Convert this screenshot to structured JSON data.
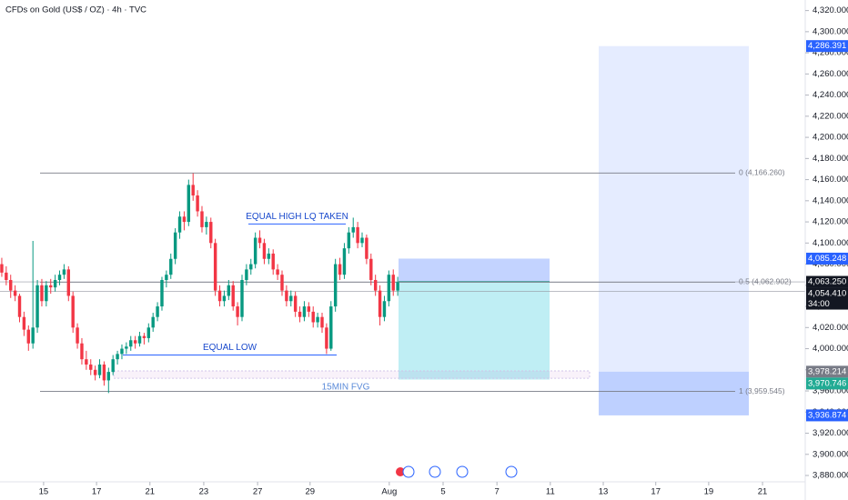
{
  "chart_data": {
    "type": "candlestick",
    "title": "CFDs on Gold (US$ / OZ) · 4h · TVC",
    "up_color": "#089981",
    "down_color": "#f23645",
    "ohlc": [
      [
        4080,
        4086,
        4068,
        4072
      ],
      [
        4072,
        4078,
        4060,
        4065
      ],
      [
        4065,
        4070,
        4048,
        4055
      ],
      [
        4055,
        4060,
        4045,
        4050
      ],
      [
        4050,
        4052,
        4025,
        4030
      ],
      [
        4030,
        4035,
        4012,
        4018
      ],
      [
        4018,
        4022,
        3998,
        4005
      ],
      [
        4005,
        4102,
        4000,
        4020
      ],
      [
        4020,
        4065,
        4015,
        4060
      ],
      [
        4060,
        4066,
        4040,
        4045
      ],
      [
        4045,
        4064,
        4040,
        4060
      ],
      [
        4060,
        4066,
        4052,
        4058
      ],
      [
        4058,
        4070,
        4054,
        4065
      ],
      [
        4065,
        4074,
        4060,
        4070
      ],
      [
        4070,
        4080,
        4066,
        4075
      ],
      [
        4075,
        4078,
        4045,
        4050
      ],
      [
        4050,
        4054,
        4015,
        4020
      ],
      [
        4020,
        4024,
        4000,
        4005
      ],
      [
        4005,
        4010,
        3985,
        3990
      ],
      [
        3990,
        3998,
        3980,
        3985
      ],
      [
        3985,
        3990,
        3975,
        3980
      ],
      [
        3980,
        3984,
        3970,
        3975
      ],
      [
        3975,
        3990,
        3972,
        3985
      ],
      [
        3985,
        3988,
        3965,
        3970
      ],
      [
        3970,
        3982,
        3958,
        3978
      ],
      [
        3978,
        3994,
        3975,
        3990
      ],
      [
        3990,
        3998,
        3985,
        3995
      ],
      [
        3995,
        4004,
        3990,
        4000
      ],
      [
        4000,
        4006,
        3995,
        4002
      ],
      [
        4002,
        4012,
        3998,
        4008
      ],
      [
        4008,
        4012,
        4000,
        4005
      ],
      [
        4005,
        4016,
        4002,
        4012
      ],
      [
        4012,
        4015,
        4004,
        4010
      ],
      [
        4010,
        4024,
        4006,
        4020
      ],
      [
        4020,
        4034,
        4016,
        4030
      ],
      [
        4030,
        4044,
        4026,
        4040
      ],
      [
        4040,
        4068,
        4036,
        4065
      ],
      [
        4065,
        4074,
        4058,
        4070
      ],
      [
        4070,
        4090,
        4066,
        4085
      ],
      [
        4085,
        4114,
        4080,
        4110
      ],
      [
        4110,
        4130,
        4104,
        4125
      ],
      [
        4125,
        4130,
        4112,
        4120
      ],
      [
        4120,
        4160,
        4116,
        4155
      ],
      [
        4155,
        4166,
        4140,
        4145
      ],
      [
        4145,
        4150,
        4125,
        4130
      ],
      [
        4130,
        4135,
        4110,
        4115
      ],
      [
        4115,
        4125,
        4108,
        4120
      ],
      [
        4120,
        4124,
        4095,
        4100
      ],
      [
        4100,
        4104,
        4050,
        4055
      ],
      [
        4055,
        4060,
        4040,
        4045
      ],
      [
        4045,
        4055,
        4040,
        4050
      ],
      [
        4050,
        4065,
        4046,
        4060
      ],
      [
        4060,
        4064,
        4036,
        4040
      ],
      [
        4040,
        4044,
        4022,
        4030
      ],
      [
        4030,
        4070,
        4026,
        4065
      ],
      [
        4065,
        4080,
        4060,
        4075
      ],
      [
        4075,
        4085,
        4070,
        4080
      ],
      [
        4080,
        4110,
        4076,
        4105
      ],
      [
        4105,
        4112,
        4095,
        4100
      ],
      [
        4100,
        4104,
        4080,
        4085
      ],
      [
        4085,
        4095,
        4080,
        4090
      ],
      [
        4090,
        4094,
        4070,
        4075
      ],
      [
        4075,
        4080,
        4065,
        4070
      ],
      [
        4070,
        4074,
        4050,
        4055
      ],
      [
        4055,
        4060,
        4040,
        4045
      ],
      [
        4045,
        4055,
        4040,
        4050
      ],
      [
        4050,
        4054,
        4030,
        4035
      ],
      [
        4035,
        4040,
        4025,
        4030
      ],
      [
        4030,
        4045,
        4026,
        4040
      ],
      [
        4040,
        4044,
        4030,
        4035
      ],
      [
        4035,
        4040,
        4020,
        4025
      ],
      [
        4025,
        4034,
        4020,
        4030
      ],
      [
        4030,
        4034,
        4015,
        4020
      ],
      [
        4020,
        4024,
        3995,
        4000
      ],
      [
        4000,
        4045,
        3998,
        4040
      ],
      [
        4040,
        4085,
        4035,
        4080
      ],
      [
        4080,
        4086,
        4065,
        4070
      ],
      [
        4070,
        4100,
        4066,
        4095
      ],
      [
        4095,
        4115,
        4090,
        4110
      ],
      [
        4110,
        4124,
        4105,
        4115
      ],
      [
        4115,
        4120,
        4095,
        4100
      ],
      [
        4100,
        4110,
        4096,
        4105
      ],
      [
        4105,
        4108,
        4080,
        4085
      ],
      [
        4085,
        4090,
        4060,
        4065
      ],
      [
        4065,
        4070,
        4050,
        4055
      ],
      [
        4055,
        4060,
        4022,
        4030
      ],
      [
        4030,
        4050,
        4026,
        4045
      ],
      [
        4045,
        4074,
        4040,
        4070
      ],
      [
        4070,
        4075,
        4050,
        4055
      ],
      [
        4055,
        4068,
        4050,
        4063
      ]
    ],
    "xlim": [
      -0.4,
      180.6
    ],
    "xticks": [
      {
        "value": 9.4,
        "label": "15"
      },
      {
        "value": 21.3,
        "label": "17"
      },
      {
        "value": 33.3,
        "label": "21"
      },
      {
        "value": 45.4,
        "label": "23"
      },
      {
        "value": 57.5,
        "label": "27"
      },
      {
        "value": 69.3,
        "label": "29"
      },
      {
        "value": 87.1,
        "label": "Aug"
      },
      {
        "value": 99.2,
        "label": "5"
      },
      {
        "value": 111.3,
        "label": "7"
      },
      {
        "value": 123.3,
        "label": "11"
      },
      {
        "value": 135.2,
        "label": "13"
      },
      {
        "value": 147.0,
        "label": "17"
      },
      {
        "value": 158.9,
        "label": "19"
      },
      {
        "value": 171.0,
        "label": "21"
      }
    ],
    "ylim": [
      3874,
      4330
    ],
    "yticks": [
      {
        "value": 4320,
        "label": "4,320.000"
      },
      {
        "value": 4300,
        "label": "4,300.000"
      },
      {
        "value": 4280,
        "label": "4,280.000"
      },
      {
        "value": 4260,
        "label": "4,260.000"
      },
      {
        "value": 4240,
        "label": "4,240.000"
      },
      {
        "value": 4220,
        "label": "4,220.000"
      },
      {
        "value": 4200,
        "label": "4,200.000"
      },
      {
        "value": 4180,
        "label": "4,180.000"
      },
      {
        "value": 4160,
        "label": "4,160.000"
      },
      {
        "value": 4140,
        "label": "4,140.000"
      },
      {
        "value": 4120,
        "label": "4,120.000"
      },
      {
        "value": 4100,
        "label": "4,100.000"
      },
      {
        "value": 4080,
        "label": "4,080.000"
      },
      {
        "value": 4060,
        "label": "4,060.000"
      },
      {
        "value": 4040,
        "label": "4,040.000"
      },
      {
        "value": 4020,
        "label": "4,020.000"
      },
      {
        "value": 4000,
        "label": "4,000.000"
      },
      {
        "value": 3980,
        "label": "3,980.000"
      },
      {
        "value": 3960,
        "label": "3,960.000"
      },
      {
        "value": 3940,
        "label": "3,940.000"
      },
      {
        "value": 3920,
        "label": "3,920.000"
      },
      {
        "value": 3900,
        "label": "3,900.000"
      },
      {
        "value": 3880,
        "label": "3,880.000"
      }
    ],
    "fib_levels": [
      {
        "value": 4166.26,
        "label": "0 (4,166.260)"
      },
      {
        "value": 4062.902,
        "label": "0.5 (4,062.902)"
      },
      {
        "value": 3959.545,
        "label": "1 (3,959.545)"
      }
    ],
    "annotations": [
      {
        "value": 4118,
        "label": "EQUAL HIGH LQ TAKEN"
      },
      {
        "value": 3994,
        "label": "EQUAL LOW"
      }
    ],
    "fvg": {
      "label": "15MIN FVG",
      "top": 3979,
      "bottom": 3972
    },
    "short_position": {
      "stop": 4085.248,
      "entry": 4063.25,
      "target": 3970.746
    },
    "projection_box": {
      "top": 4286.391,
      "mid": 3978.214,
      "bottom": 3936.874
    },
    "price_labels": [
      {
        "value": 4286.391,
        "label": "4,286.391",
        "color": "#2962ff"
      },
      {
        "value": 4085.248,
        "label": "4,085.248",
        "color": "#2962ff"
      },
      {
        "value": 4063.25,
        "label": "4,063.250",
        "color": "#131722",
        "line": true
      },
      {
        "value": 4054.41,
        "label": "4,054.410",
        "color": "#131722",
        "line": true,
        "countdown": "34:00"
      },
      {
        "value": 3978.214,
        "label": "3,978.214",
        "color": "#787b86"
      },
      {
        "value": 3970.746,
        "label": "3,970.746",
        "color": "#22ab94"
      },
      {
        "value": 3936.874,
        "label": "3,936.874",
        "color": "#2962ff"
      }
    ]
  }
}
